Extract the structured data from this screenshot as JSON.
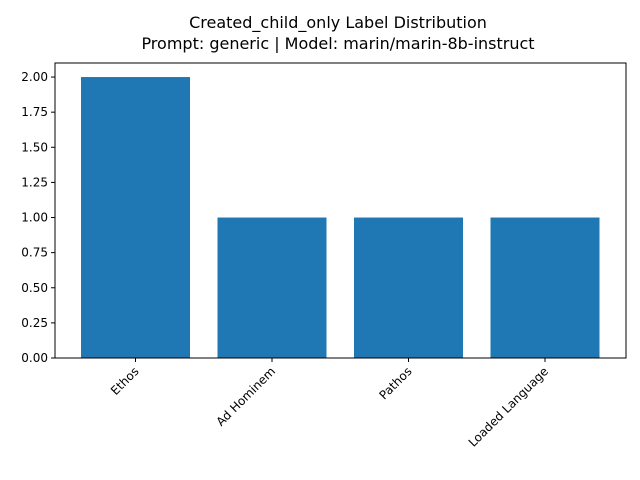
{
  "chart_data": {
    "type": "bar",
    "title_line1": "Created_child_only Label Distribution",
    "title_line2": "Prompt: generic | Model: marin/marin-8b-instruct",
    "categories": [
      "Ethos",
      "Ad Hominem",
      "Pathos",
      "Loaded Language"
    ],
    "values": [
      2,
      1,
      1,
      1
    ],
    "xlabel": "",
    "ylabel": "",
    "ylim": [
      0,
      2.1
    ],
    "yticks": [
      "0.00",
      "0.25",
      "0.50",
      "0.75",
      "1.00",
      "1.25",
      "1.50",
      "1.75",
      "2.00"
    ],
    "ytick_values": [
      0,
      0.25,
      0.5,
      0.75,
      1.0,
      1.25,
      1.5,
      1.75,
      2.0
    ],
    "bar_color": "#1f77b4",
    "grid": false,
    "legend": "none"
  }
}
